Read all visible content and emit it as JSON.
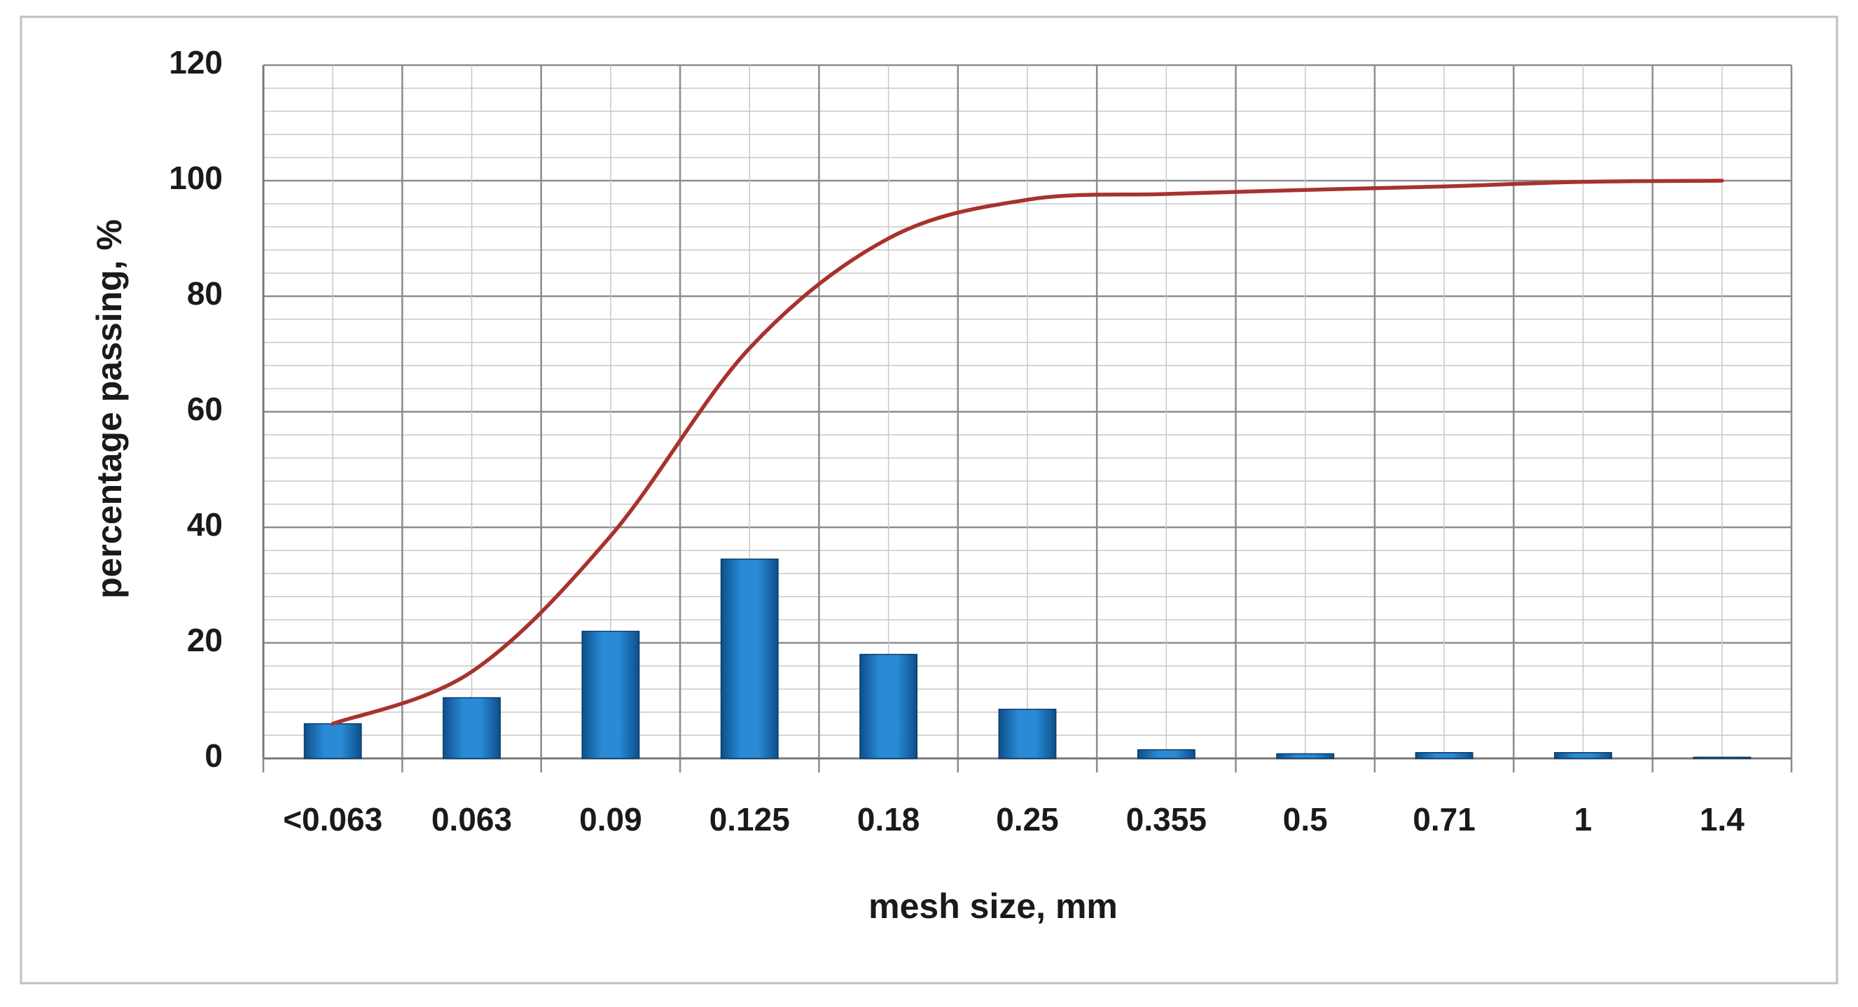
{
  "chart_data": {
    "type": "combo",
    "xlabel": "mesh size, mm",
    "ylabel": "percentage passing, %",
    "categories": [
      "<0.063",
      "0.063",
      "0.09",
      "0.125",
      "0.18",
      "0.25",
      "0.355",
      "0.5",
      "0.71",
      "1",
      "1.4"
    ],
    "series": [
      {
        "type": "bar",
        "color": "#1f77c0",
        "values": [
          6,
          10.5,
          22,
          34.5,
          18,
          8.5,
          1.5,
          0.8,
          1,
          1,
          0.2
        ]
      },
      {
        "type": "line",
        "color": "#a8322d",
        "values": [
          6,
          15,
          38.5,
          71,
          90,
          96.7,
          97.7,
          98.4,
          99,
          99.8,
          100
        ]
      }
    ],
    "ylim": [
      0,
      120
    ],
    "yticks": [
      0,
      20,
      40,
      60,
      80,
      100,
      120
    ],
    "grid": true,
    "minor_grid": true
  }
}
